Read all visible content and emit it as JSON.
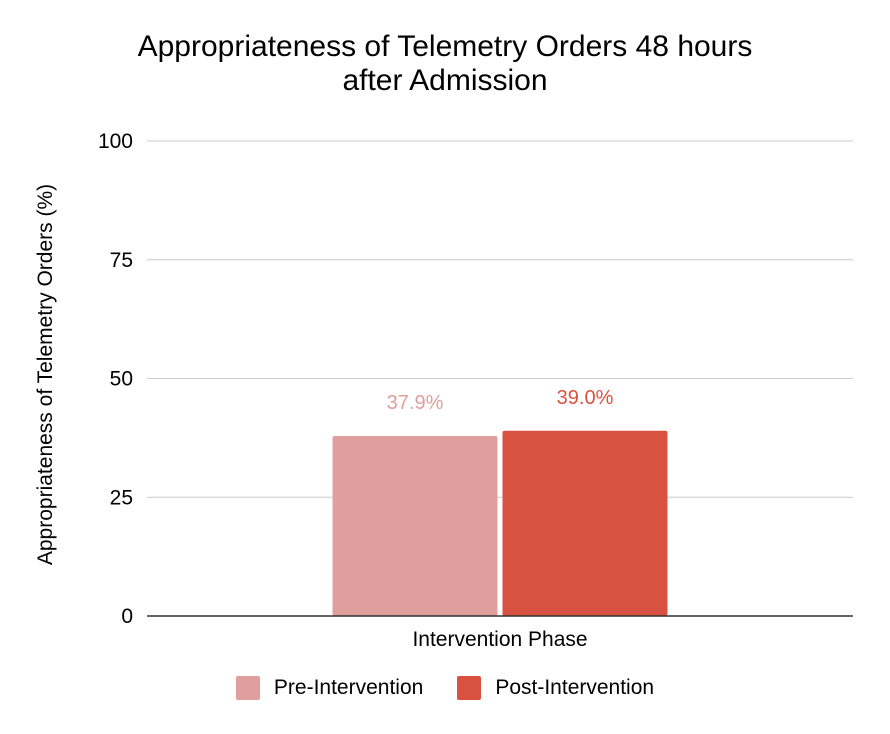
{
  "chart_data": {
    "type": "bar",
    "title_line1": "Appropriateness of Telemetry Orders 48 hours",
    "title_line2": "after Admission",
    "xlabel": "Intervention Phase",
    "ylabel": "Appropriateness of Telemetry Orders (%)",
    "categories": [
      "Intervention Phase"
    ],
    "ylim": [
      0,
      100
    ],
    "yticks": [
      "0",
      "25",
      "50",
      "75",
      "100"
    ],
    "grid": true,
    "legend_position": "bottom",
    "series": [
      {
        "name": "Pre-Intervention",
        "values": [
          37.9
        ],
        "data_label": "37.9%",
        "color": "#e09e9c",
        "label_color": "#e09e9c"
      },
      {
        "name": "Post-Intervention",
        "values": [
          39.0
        ],
        "data_label": "39.0%",
        "color": "#d95241",
        "label_color": "#d95241"
      }
    ]
  }
}
